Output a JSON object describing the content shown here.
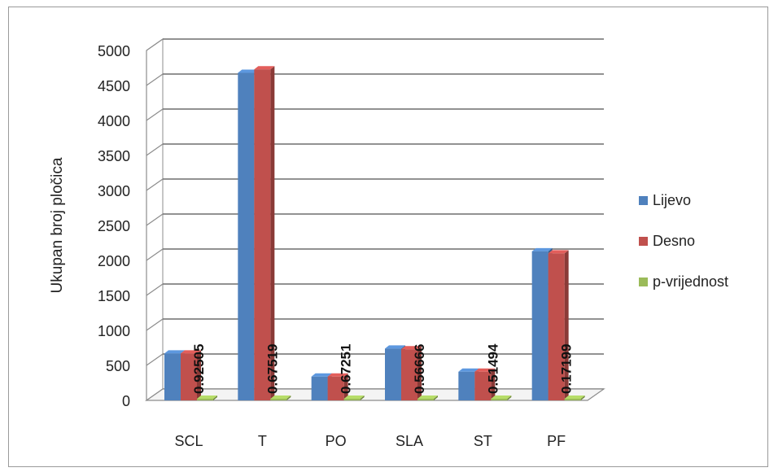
{
  "chart_data": {
    "type": "bar",
    "title": "",
    "xlabel": "",
    "ylabel": "Ukupan broj pločica",
    "ylim": [
      0,
      5000
    ],
    "yticks": [
      0,
      500,
      1000,
      1500,
      2000,
      2500,
      3000,
      3500,
      4000,
      4500,
      5000
    ],
    "categories": [
      "SCL",
      "T",
      "PO",
      "SLA",
      "ST",
      "PF"
    ],
    "series": [
      {
        "name": "Lijevo",
        "color": "#4f81bd",
        "values": [
          670,
          4680,
          340,
          740,
          410,
          2130
        ]
      },
      {
        "name": "Desno",
        "color": "#c0504d",
        "values": [
          670,
          4730,
          340,
          730,
          410,
          2100
        ]
      },
      {
        "name": "p-vrijednost",
        "color": "#9bbb59",
        "values": [
          0.92505,
          0.67519,
          0.67251,
          0.56666,
          0.51494,
          0.17199
        ]
      }
    ],
    "data_labels": [
      "0.92505",
      "0.67519",
      "0.67251",
      "0.56666",
      "0.51494",
      "0.17199"
    ],
    "legend_position": "right",
    "grid": true,
    "style": "3d-clustered-column"
  }
}
